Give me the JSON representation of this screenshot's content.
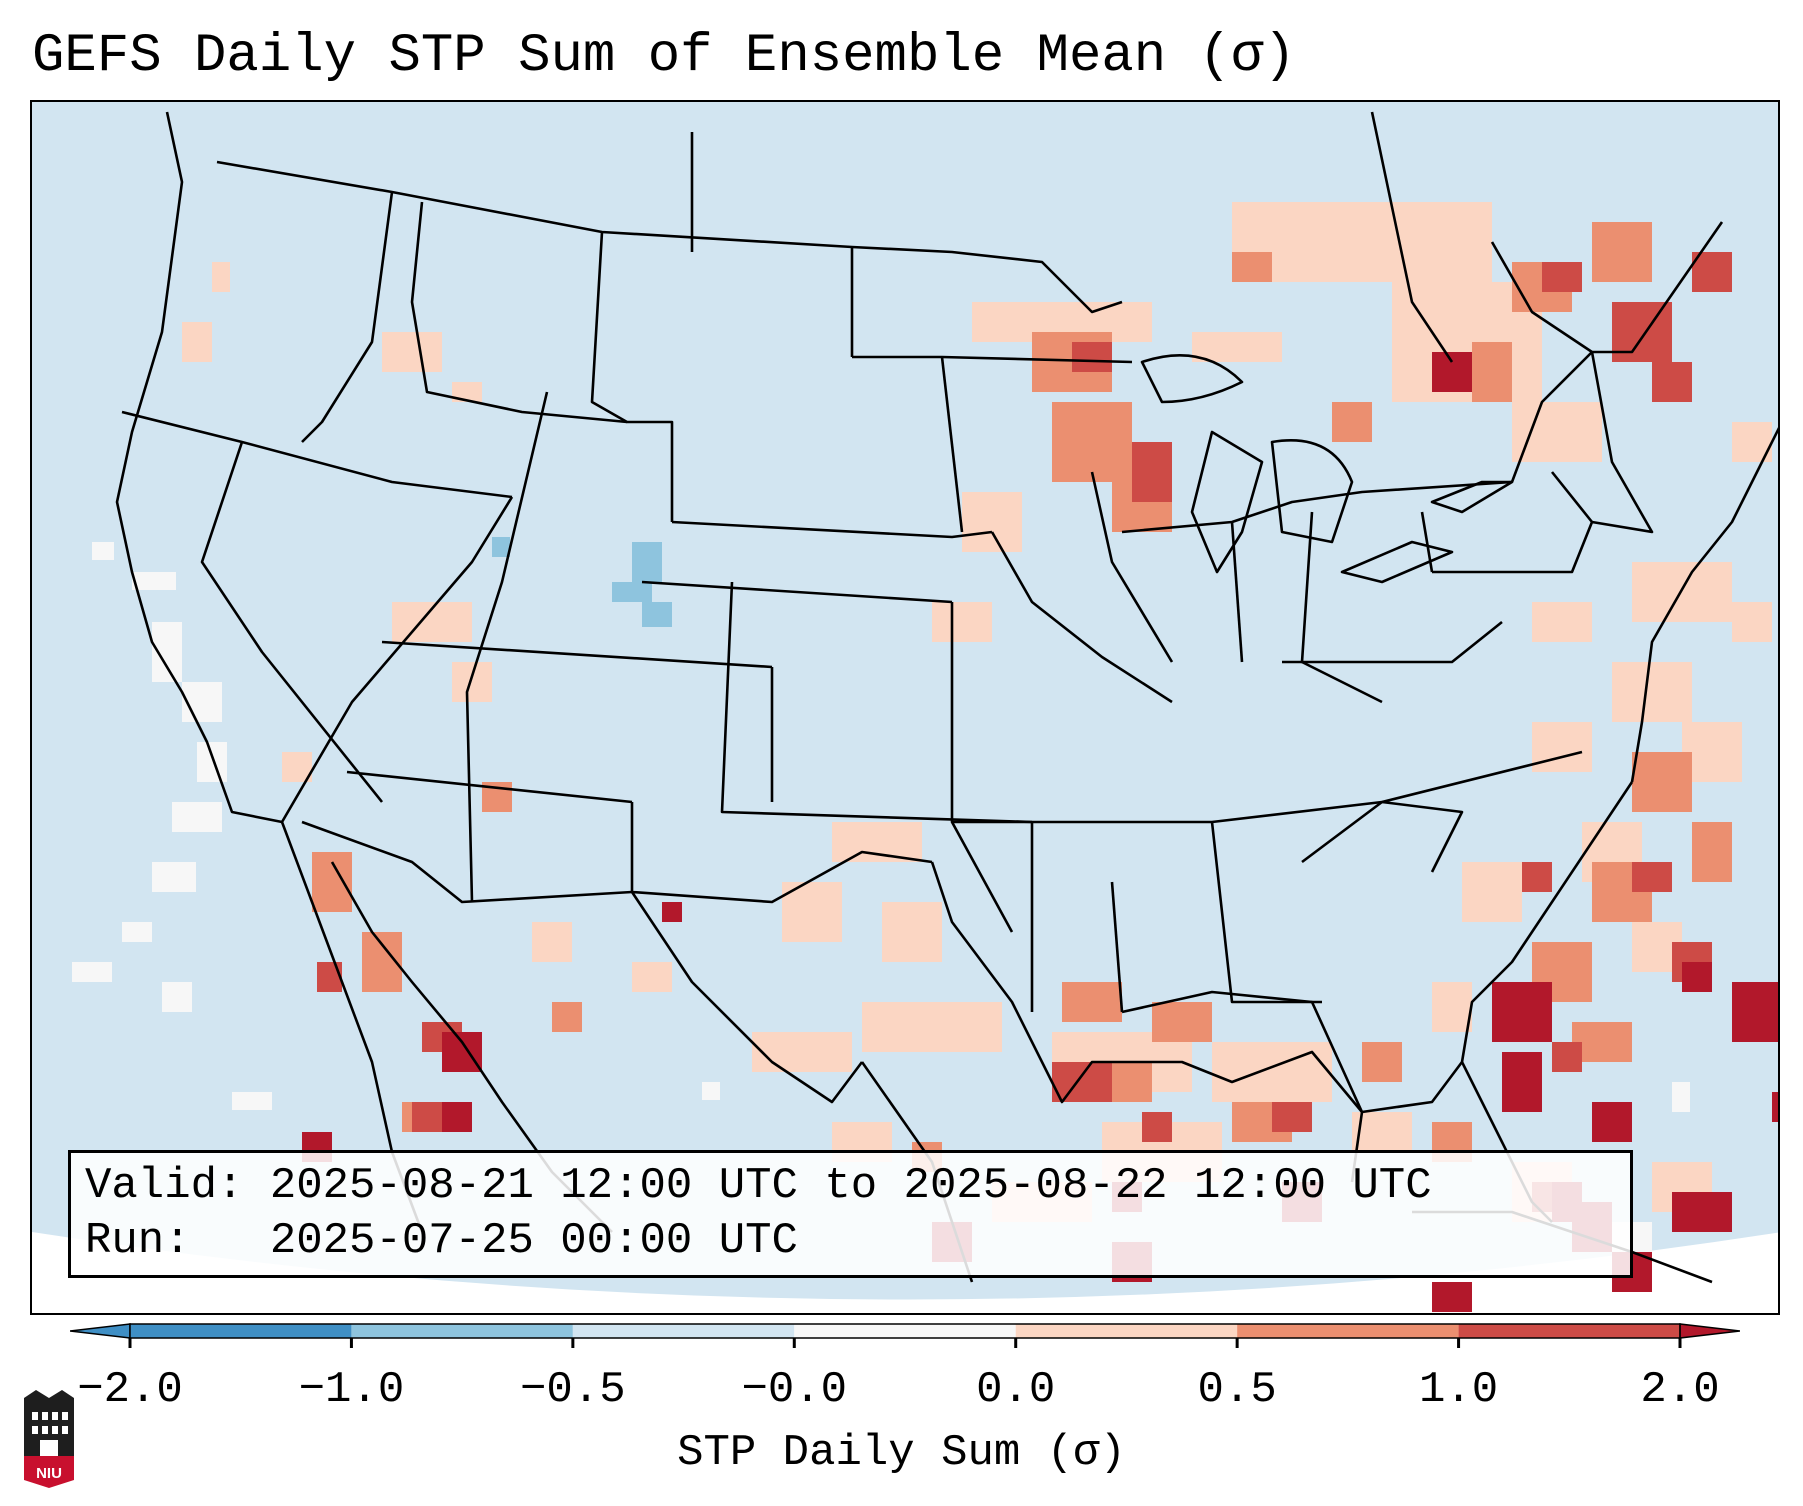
{
  "title": "GEFS Daily STP Sum of Ensemble Mean (σ)",
  "info": {
    "valid_line": "Valid: 2025-08-21 12:00 UTC to 2025-08-22 12:00 UTC",
    "run_line": "Run:   2025-07-25 00:00 UTC"
  },
  "colorbar": {
    "label": "STP Daily Sum (σ)",
    "ticks": [
      "−2.0",
      "−1.0",
      "−0.5",
      "−0.0",
      "0.0",
      "0.5",
      "1.0",
      "2.0"
    ],
    "colors": [
      "#3f8fc5",
      "#8ec4de",
      "#d2e5f1",
      "#f7f7f7",
      "#fbd6c3",
      "#eb8f70",
      "#cd4b46",
      "#b2182b"
    ]
  },
  "map": {
    "background_color": "#d2e5f1",
    "state_line_color": "#000000"
  },
  "logo": {
    "text": "NIU",
    "name": "niu-logo"
  }
}
